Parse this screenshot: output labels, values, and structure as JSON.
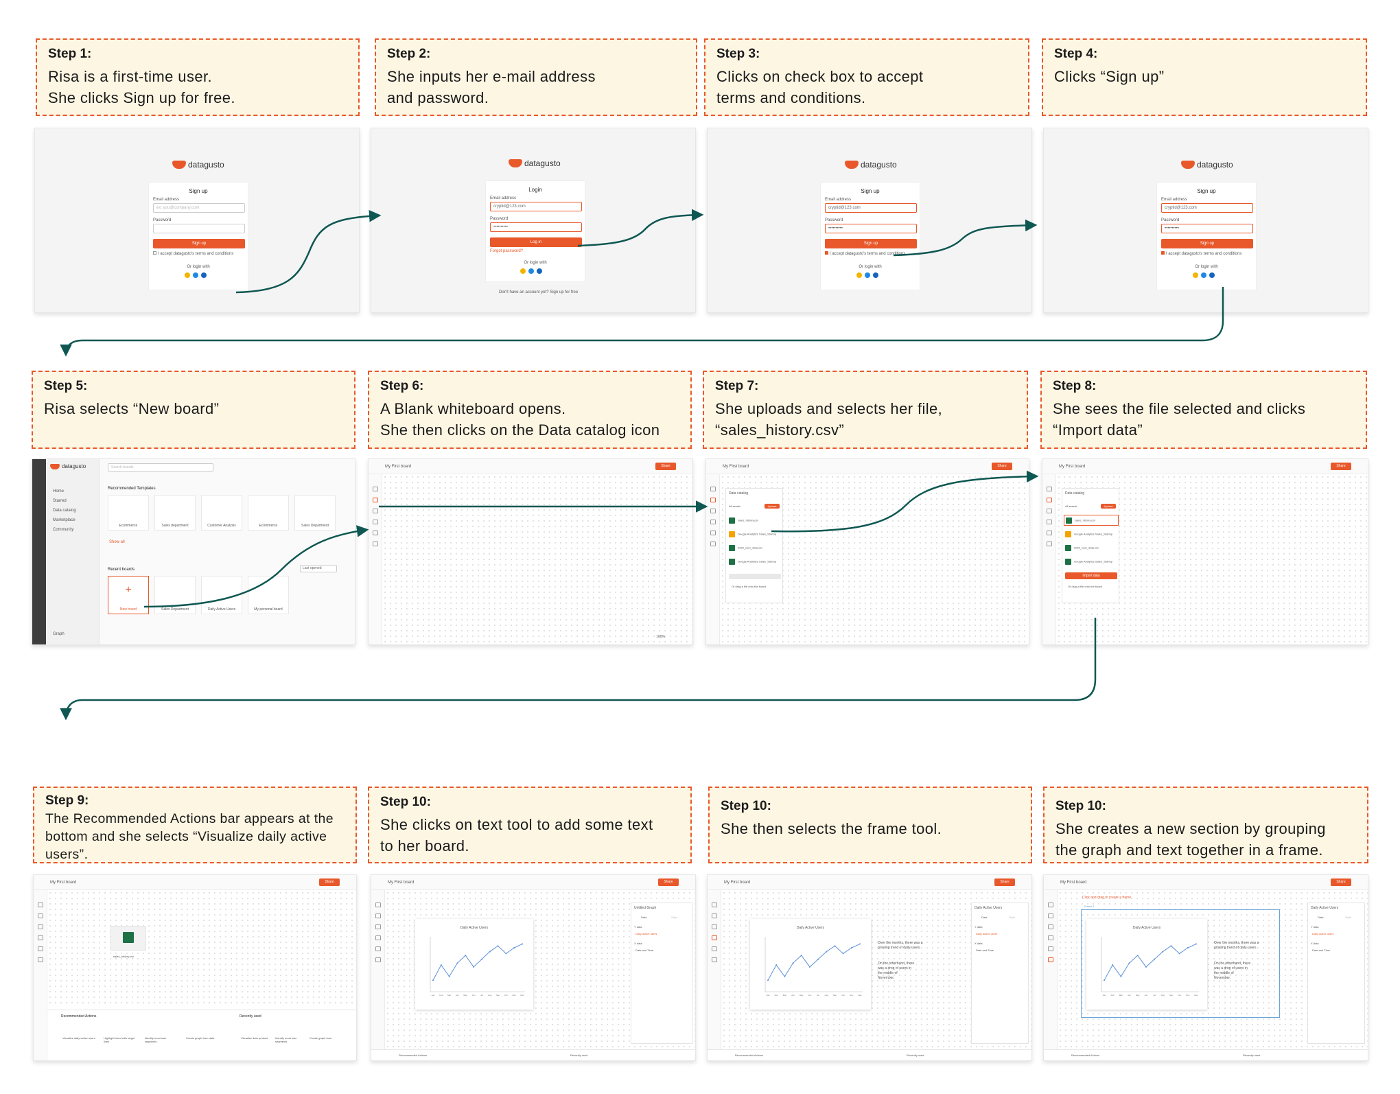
{
  "colors": {
    "accent": "#e8582a",
    "arrow": "#0e5752",
    "box_bg": "#fdf6e3",
    "excel": "#1e7145"
  },
  "steps": [
    {
      "num": "Step 1:",
      "text": "Risa is a first-time user.\nShe clicks Sign up for free."
    },
    {
      "num": "Step 2:",
      "text": "She inputs her e-mail address\nand password."
    },
    {
      "num": "Step 3:",
      "text": "Clicks on check box to accept\nterms and conditions."
    },
    {
      "num": "Step 4:",
      "text": "Clicks “Sign up”"
    },
    {
      "num": "Step 5:",
      "text": "Risa selects “New board”"
    },
    {
      "num": "Step 6:",
      "text": "A Blank whiteboard opens.\nShe then clicks on the Data catalog icon"
    },
    {
      "num": "Step 7:",
      "text": "She uploads and selects her file,\n“sales_history.csv”"
    },
    {
      "num": "Step 8:",
      "text": "She sees the file selected and clicks\n“Import data”"
    },
    {
      "num": "Step 9:",
      "text": "The Recommended Actions bar appears at the\nbottom and she selects “Visualize daily active\nusers”."
    },
    {
      "num": "Step 10:",
      "text": "She clicks on text tool to add some text\nto her board."
    },
    {
      "num": "Step 10:",
      "text": "She then selects the frame tool."
    },
    {
      "num": "Step 10:",
      "text": "She creates a new section by grouping\nthe graph and text together in a frame."
    }
  ],
  "auth": {
    "brand": "datagusto",
    "signup_title": "Sign up",
    "login_title": "Login",
    "email_label": "Email address",
    "password_label": "Password",
    "email_placeholder": "ex: you@company.com",
    "email_value": "cryptid@123.com",
    "password_dots": "••••••••••",
    "signup_btn": "Sign up",
    "login_btn": "Log in",
    "terms": "I accept datagusto's terms and conditions",
    "forgot": "Forgot password?",
    "or_login": "Or login with",
    "no_account": "Don't have an account yet? Sign up for free"
  },
  "home": {
    "search": "Search boards",
    "nav": [
      "Home",
      "Starred",
      "Data catalog",
      "Marketplace",
      "Community"
    ],
    "recommended_title": "Recommended Templates",
    "templates": [
      "Ecommerce",
      "Sales department",
      "Customer Analysis",
      "Ecommerce",
      "Sales Department"
    ],
    "show_all": "Show all",
    "recent_title": "Recent boards",
    "sort": "Last opened",
    "boards": [
      "New board",
      "Sales Department",
      "Daily Active Users",
      "My personal board"
    ],
    "footer": "Graph"
  },
  "board": {
    "title": "My First board",
    "share": "Share",
    "zoom": "100%",
    "catalog_title": "Data catalog",
    "upload": "Upload",
    "all_assets": "All assets",
    "files": [
      "sales_history.csv",
      "Google Analytics Sales_Startup",
      "2022_user_data.csv",
      "Google Analytics Sales_Startup"
    ],
    "import_btn": "Import data",
    "drop_hint": "Or drag a file onto the board",
    "file_icon_label": "sales_history.csv",
    "rec_actions": "Recommended Actions",
    "recently_used": "Recently used",
    "rec_items": [
      "Visualize daily active users",
      "Highlight trend with target lines",
      "Identify most user segments",
      "Create graph from data"
    ],
    "recent_items": [
      "Visualize data product",
      "Identify most user segments",
      "Create graph from"
    ],
    "chart_title": "Daily Active Users",
    "panel_title": "Untitled Graph",
    "panel_title2": "Daily Active Users",
    "panel_tabs": [
      "Data",
      "Style"
    ],
    "panel_x": "Y data",
    "panel_y": "X data",
    "panel_x_val": "Daily active users",
    "panel_y_val": "Date and Time",
    "note1": "Over the months, there was a growing trend of daily users.",
    "note2": "On the otherhand, there was a drop of users in the middle of November.",
    "frame_hint": "Click and drag to create a frame",
    "frame_label": "Frame 1"
  },
  "chart_data": {
    "type": "line",
    "title": "Daily Active Users",
    "x": [
      "Jan",
      "Feb",
      "Mar",
      "Apr",
      "May",
      "Jun",
      "Jul",
      "Aug",
      "Sep",
      "Oct",
      "Nov",
      "Dec"
    ],
    "values": [
      12,
      28,
      16,
      30,
      38,
      26,
      34,
      42,
      48,
      40,
      46,
      50
    ]
  }
}
